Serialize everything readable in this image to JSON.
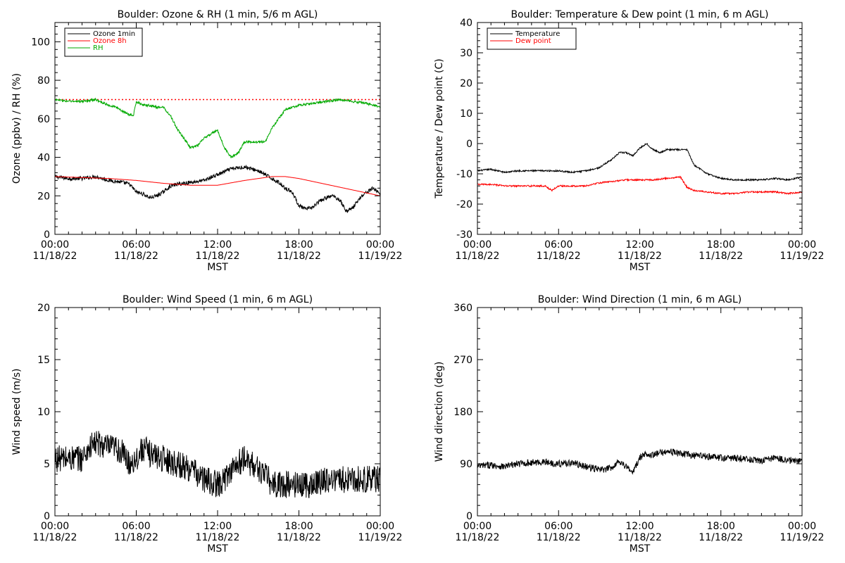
{
  "chart_data": [
    {
      "type": "line",
      "title": "Boulder: Ozone & RH (1 min, 5/6 m AGL)",
      "ylabel": "Ozone (ppbv) / RH (%)",
      "xlabel": "MST",
      "ylim": [
        0,
        110
      ],
      "yticks": [
        0,
        20,
        40,
        60,
        80,
        100
      ],
      "xlim": [
        0,
        24
      ],
      "xticks": [
        {
          "hour": 0,
          "time": "00:00",
          "date": "11/18/22"
        },
        {
          "hour": 6,
          "time": "06:00",
          "date": "11/18/22"
        },
        {
          "hour": 12,
          "time": "12:00",
          "date": "11/18/22"
        },
        {
          "hour": 18,
          "time": "18:00",
          "date": "11/18/22"
        },
        {
          "hour": 24,
          "time": "00:00",
          "date": "11/19/22"
        }
      ],
      "legend": {
        "position": "top-left",
        "box": true
      },
      "reference_lines": [
        {
          "y": 70,
          "color": "#ff0000",
          "style": "dotted"
        }
      ],
      "series": [
        {
          "name": "Ozone 1min",
          "color": "#000000",
          "noise": 1.0,
          "x": [
            0,
            1,
            2,
            3,
            4,
            5,
            5.5,
            6,
            6.5,
            7,
            7.5,
            8,
            8.5,
            9,
            10,
            11,
            12,
            13,
            14,
            15,
            15.5,
            16,
            16.5,
            17,
            17.5,
            18,
            18.5,
            19,
            19.5,
            20,
            20.5,
            21,
            21.5,
            22,
            22.5,
            23,
            23.5,
            24
          ],
          "y": [
            30,
            29,
            29,
            30,
            28,
            27,
            26,
            22,
            21,
            19,
            20,
            22,
            25,
            26,
            27,
            28,
            31,
            34,
            35,
            33,
            31,
            29,
            27,
            24,
            22,
            15,
            13,
            14,
            17,
            19,
            20,
            18,
            12,
            14,
            19,
            22,
            24,
            21
          ]
        },
        {
          "name": "Ozone 8h",
          "color": "#ff0000",
          "noise": 0,
          "x": [
            0,
            2,
            4,
            6,
            8,
            10,
            12,
            14,
            16,
            17,
            18,
            20,
            22,
            24
          ],
          "y": [
            30,
            29.5,
            29,
            28,
            26.5,
            25.5,
            25.5,
            28,
            30,
            30,
            29,
            26,
            23,
            20
          ]
        },
        {
          "name": "RH",
          "color": "#00aa00",
          "noise": 0.6,
          "x": [
            0,
            1,
            2,
            3,
            4,
            4.5,
            5,
            5.5,
            5.8,
            6,
            6.5,
            7,
            7.5,
            8,
            8.5,
            9,
            9.5,
            10,
            10.5,
            11,
            11.5,
            12,
            12.5,
            13,
            13.5,
            14,
            14.5,
            15,
            15.5,
            16,
            17,
            18,
            19,
            20,
            21,
            22,
            23,
            24
          ],
          "y": [
            70,
            69,
            69,
            70,
            67,
            66,
            64,
            62,
            62,
            69,
            67,
            67,
            66,
            66,
            62,
            55,
            50,
            45,
            46,
            50,
            52,
            54,
            45,
            40,
            42,
            48,
            48,
            48,
            48,
            55,
            65,
            67,
            68,
            69,
            70,
            69,
            68,
            66
          ]
        }
      ]
    },
    {
      "type": "line",
      "title": "Boulder: Temperature & Dew point (1 min, 6 m AGL)",
      "ylabel": "Temperature / Dew point (C)",
      "xlabel": "MST",
      "ylim": [
        -30,
        40
      ],
      "yticks": [
        -30,
        -20,
        -10,
        0,
        10,
        20,
        30,
        40
      ],
      "xlim": [
        0,
        24
      ],
      "xticks": [
        {
          "hour": 0,
          "time": "00:00",
          "date": "11/18/22"
        },
        {
          "hour": 6,
          "time": "06:00",
          "date": "11/18/22"
        },
        {
          "hour": 12,
          "time": "12:00",
          "date": "11/18/22"
        },
        {
          "hour": 18,
          "time": "18:00",
          "date": "11/18/22"
        },
        {
          "hour": 24,
          "time": "00:00",
          "date": "11/19/22"
        }
      ],
      "legend": {
        "position": "top-left",
        "box": true
      },
      "reference_lines": [],
      "series": [
        {
          "name": "Temperature",
          "color": "#000000",
          "noise": 0.25,
          "x": [
            0,
            1,
            2,
            3,
            4,
            5,
            6,
            7,
            8,
            9,
            10,
            10.5,
            11,
            11.5,
            12,
            12.5,
            13,
            13.5,
            14,
            15,
            15.5,
            16,
            17,
            18,
            19,
            20,
            21,
            22,
            23,
            24
          ],
          "y": [
            -9,
            -8.5,
            -9.5,
            -9,
            -9,
            -9,
            -9,
            -9.5,
            -9,
            -8,
            -5,
            -3,
            -3,
            -4,
            -1.5,
            0,
            -2,
            -3,
            -2,
            -2,
            -2,
            -7,
            -10,
            -11.5,
            -12,
            -12,
            -12,
            -11.5,
            -12,
            -11
          ]
        },
        {
          "name": "Dew point",
          "color": "#ff0000",
          "noise": 0.25,
          "x": [
            0,
            1,
            2,
            3,
            4,
            5,
            5.5,
            6,
            7,
            8,
            9,
            10,
            11,
            12,
            13,
            14,
            15,
            15.5,
            16,
            17,
            18,
            19,
            20,
            21,
            22,
            23,
            24
          ],
          "y": [
            -13.5,
            -13.5,
            -14,
            -14,
            -14,
            -14,
            -15.5,
            -14,
            -14,
            -14,
            -13,
            -12.5,
            -12,
            -12,
            -12,
            -11.5,
            -11,
            -14.5,
            -15.5,
            -16,
            -16.5,
            -16.5,
            -16,
            -16,
            -16,
            -16.5,
            -16
          ]
        }
      ]
    },
    {
      "type": "line",
      "title": "Boulder: Wind Speed (1 min, 6 m AGL)",
      "ylabel": "Wind speed (m/s)",
      "xlabel": "MST",
      "ylim": [
        0,
        20
      ],
      "yticks": [
        0,
        5,
        10,
        15,
        20
      ],
      "xlim": [
        0,
        24
      ],
      "xticks": [
        {
          "hour": 0,
          "time": "00:00",
          "date": "11/18/22"
        },
        {
          "hour": 6,
          "time": "06:00",
          "date": "11/18/22"
        },
        {
          "hour": 12,
          "time": "12:00",
          "date": "11/18/22"
        },
        {
          "hour": 18,
          "time": "18:00",
          "date": "11/18/22"
        },
        {
          "hour": 24,
          "time": "00:00",
          "date": "11/19/22"
        }
      ],
      "legend": null,
      "reference_lines": [],
      "series": [
        {
          "name": "",
          "color": "#000000",
          "noise": 1.3,
          "x": [
            0,
            1,
            2,
            2.5,
            3,
            4,
            4.5,
            5,
            5.5,
            6,
            6.5,
            7,
            8,
            9,
            10,
            11,
            12,
            12.5,
            13,
            13.5,
            14,
            14.5,
            15,
            15.5,
            16,
            17,
            18,
            19,
            20,
            21,
            22,
            23,
            24
          ],
          "y": [
            5.5,
            5.5,
            5.5,
            6.5,
            7,
            6.5,
            6.5,
            6,
            5,
            5.5,
            6.5,
            6,
            5.5,
            5,
            4.5,
            3.5,
            3,
            3.5,
            4.5,
            5,
            5.5,
            5,
            4.5,
            4,
            3,
            3,
            3,
            3,
            3.5,
            3.5,
            3.5,
            3.5,
            3.5
          ]
        }
      ]
    },
    {
      "type": "line",
      "title": "Boulder: Wind Direction (1 min, 6 m AGL)",
      "ylabel": "Wind direction (deg)",
      "xlabel": "MST",
      "ylim": [
        0,
        360
      ],
      "yticks": [
        0,
        90,
        180,
        270,
        360
      ],
      "xlim": [
        0,
        24
      ],
      "xticks": [
        {
          "hour": 0,
          "time": "00:00",
          "date": "11/18/22"
        },
        {
          "hour": 6,
          "time": "06:00",
          "date": "11/18/22"
        },
        {
          "hour": 12,
          "time": "12:00",
          "date": "11/18/22"
        },
        {
          "hour": 18,
          "time": "18:00",
          "date": "11/18/22"
        },
        {
          "hour": 24,
          "time": "00:00",
          "date": "11/19/22"
        }
      ],
      "legend": null,
      "reference_lines": [],
      "series": [
        {
          "name": "",
          "color": "#000000",
          "noise": 6,
          "x": [
            0,
            1,
            2,
            3,
            4,
            5,
            6,
            7,
            8,
            9,
            9.5,
            10,
            10.5,
            11,
            11.5,
            12,
            12.5,
            13,
            14,
            15,
            16,
            17,
            18,
            19,
            20,
            21,
            22,
            23,
            24
          ],
          "y": [
            85,
            88,
            85,
            90,
            92,
            93,
            90,
            92,
            85,
            80,
            80,
            85,
            95,
            85,
            75,
            100,
            108,
            105,
            112,
            108,
            104,
            103,
            100,
            100,
            98,
            95,
            100,
            96,
            95
          ]
        }
      ]
    }
  ]
}
